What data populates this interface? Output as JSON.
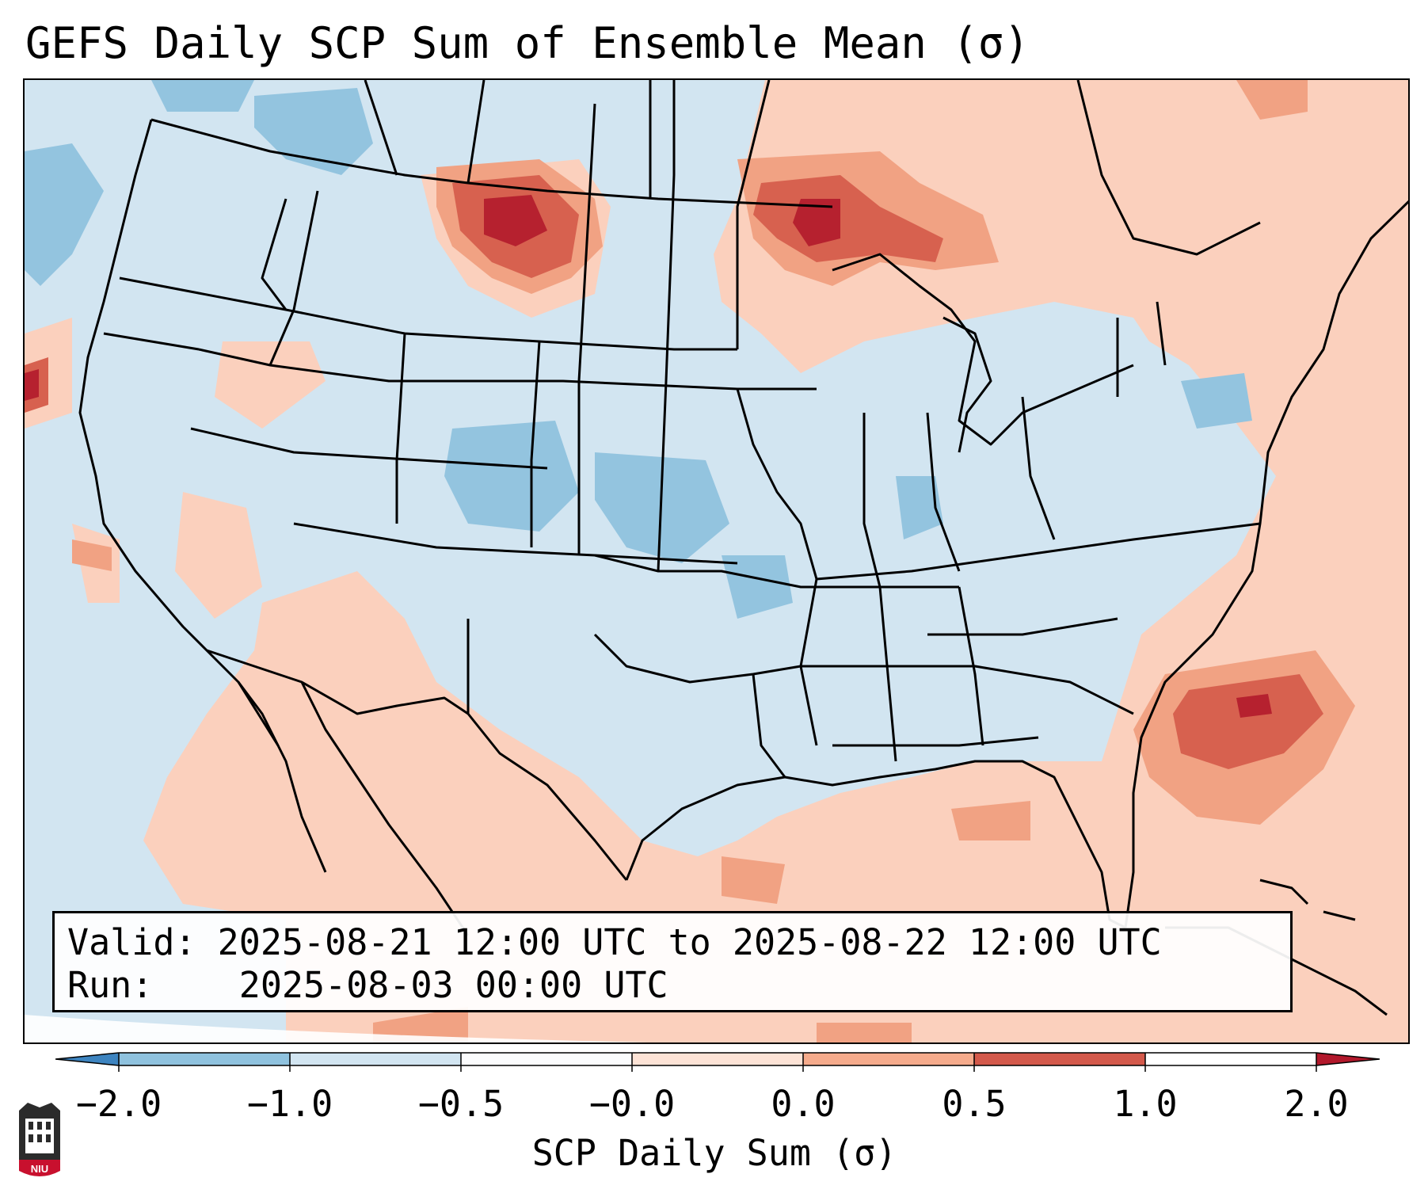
{
  "title": "GEFS Daily SCP Sum of Ensemble Mean (σ)",
  "info": {
    "valid_label": "Valid:",
    "valid_value": "2025-08-21 12:00 UTC to 2025-08-22 12:00 UTC",
    "run_label": "Run:",
    "run_value": "2025-08-03 00:00 UTC"
  },
  "colorbar": {
    "title": "SCP Daily Sum (σ)",
    "tick_labels": [
      "−2.0",
      "−1.0",
      "−0.5",
      "−0.0",
      "0.0",
      "0.5",
      "1.0",
      "2.0"
    ],
    "colors": [
      "#3d84c0",
      "#8fc2de",
      "#d2e5f1",
      "#fbfcfd",
      "#fde3d6",
      "#f5ab8c",
      "#d3594b",
      "#b2182b"
    ]
  },
  "map_colors": {
    "background": "#d2e5f1",
    "light_red": "#fbd0bd",
    "medium_red": "#f1a283",
    "strong_red": "#d7614f",
    "dark_red": "#b6212f",
    "light_blue": "#93c4df",
    "border": "#000000"
  },
  "logo": {
    "text": "NIU"
  }
}
